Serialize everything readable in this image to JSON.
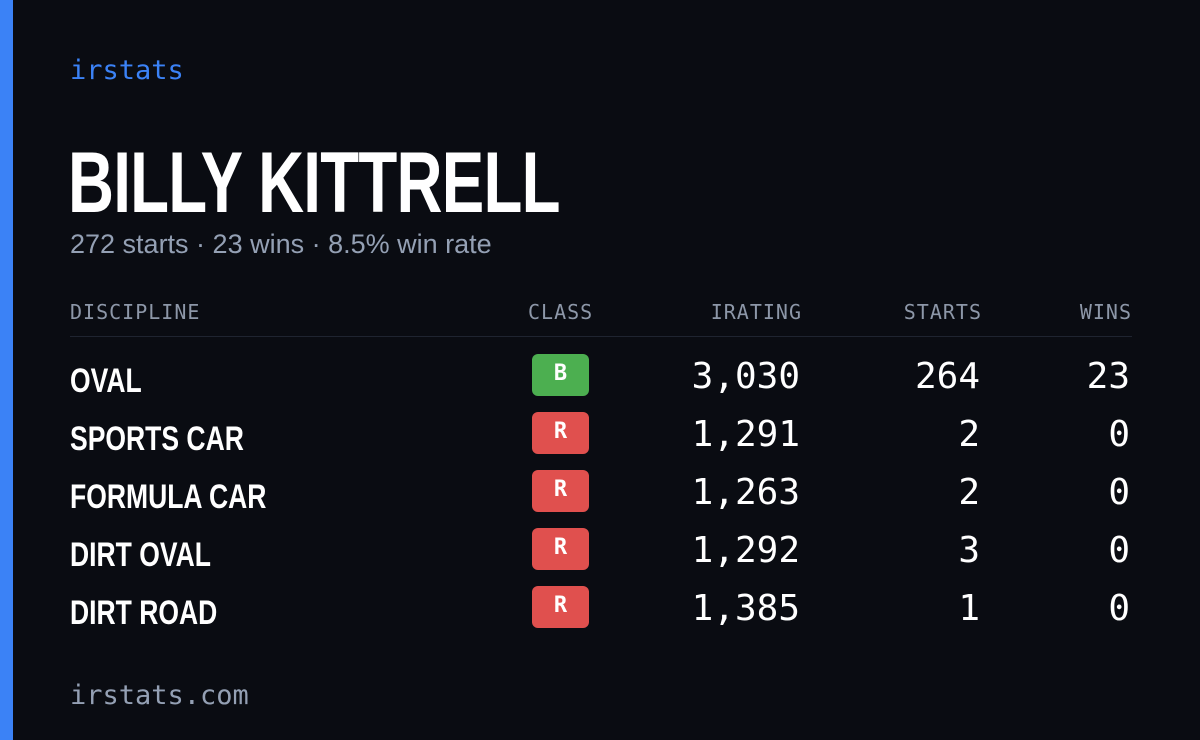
{
  "brand": "irstats",
  "driver": {
    "name": "BILLY KITTRELL",
    "summary": "272 starts · 23 wins · 8.5% win rate"
  },
  "table": {
    "headers": {
      "discipline": "DISCIPLINE",
      "class": "CLASS",
      "irating": "IRATING",
      "starts": "STARTS",
      "wins": "WINS"
    },
    "rows": [
      {
        "discipline": "OVAL",
        "class": "B",
        "class_color": "#4caf50",
        "irating": "3,030",
        "starts": "264",
        "wins": "23"
      },
      {
        "discipline": "SPORTS CAR",
        "class": "R",
        "class_color": "#e0504e",
        "irating": "1,291",
        "starts": "2",
        "wins": "0"
      },
      {
        "discipline": "FORMULA CAR",
        "class": "R",
        "class_color": "#e0504e",
        "irating": "1,263",
        "starts": "2",
        "wins": "0"
      },
      {
        "discipline": "DIRT OVAL",
        "class": "R",
        "class_color": "#e0504e",
        "irating": "1,292",
        "starts": "3",
        "wins": "0"
      },
      {
        "discipline": "DIRT ROAD",
        "class": "R",
        "class_color": "#e0504e",
        "irating": "1,385",
        "starts": "1",
        "wins": "0"
      }
    ]
  },
  "footer": "irstats.com",
  "colors": {
    "background": "#0a0c12",
    "accent": "#3b82f6",
    "muted_text": "#94a0b4"
  }
}
